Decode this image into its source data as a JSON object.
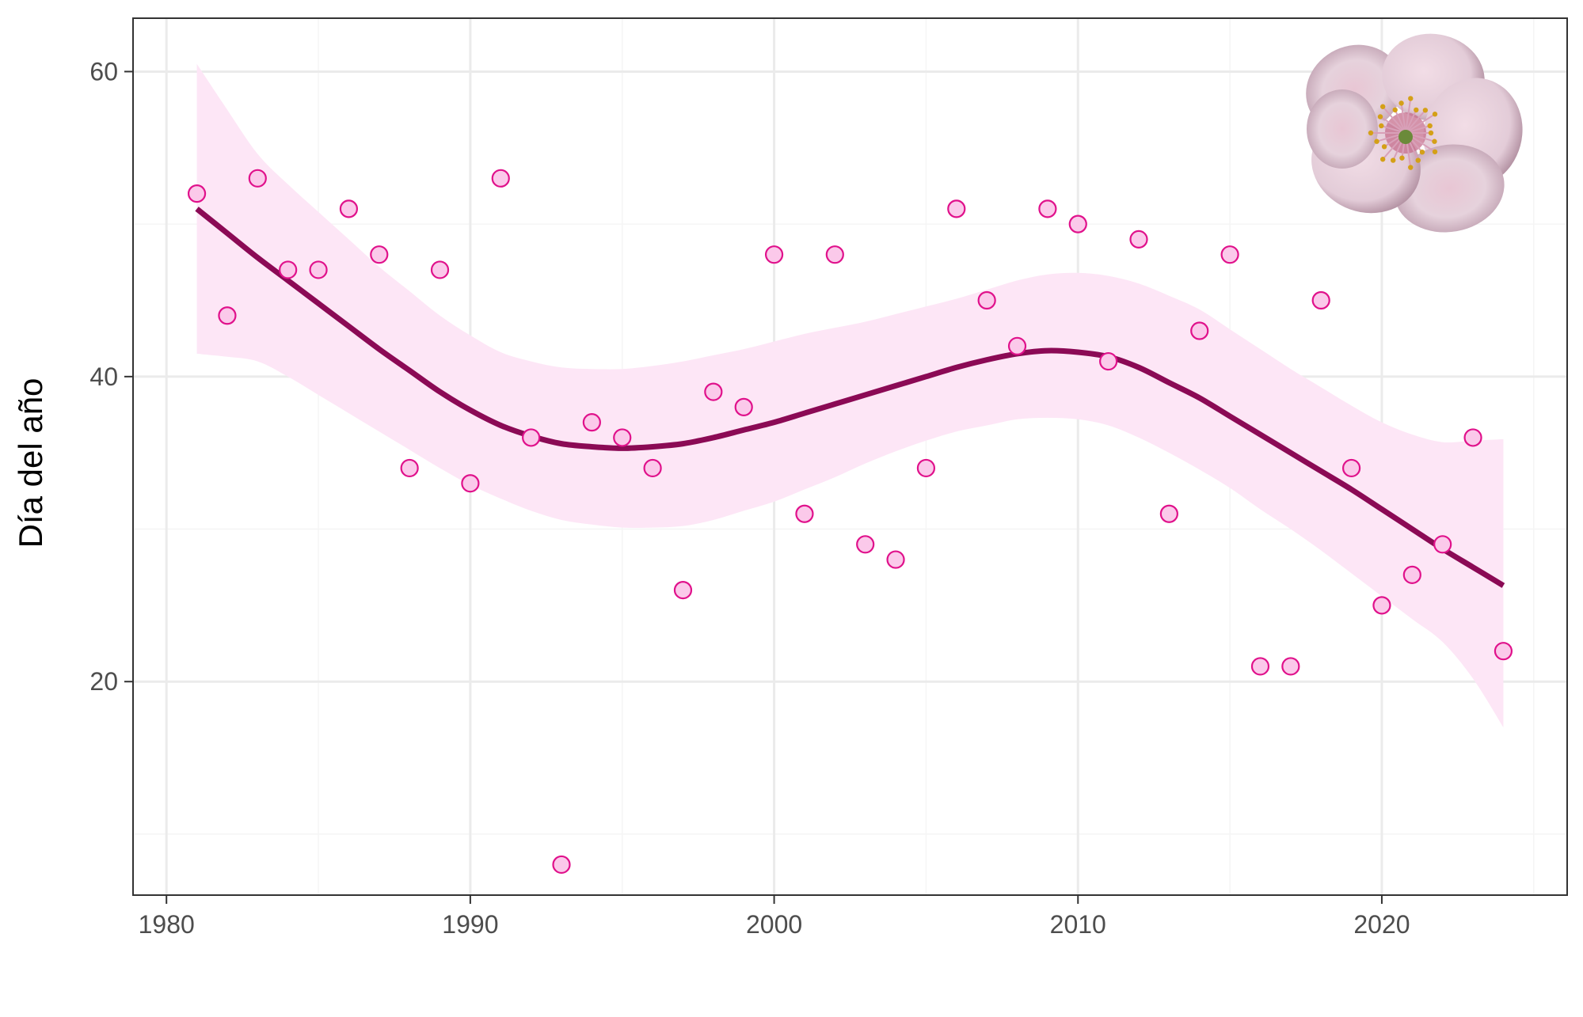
{
  "chart_data": {
    "type": "scatter",
    "xlabel": "",
    "ylabel": "Día del año",
    "xlim": [
      1978.9,
      2026.1
    ],
    "ylim": [
      6.0,
      63.5
    ],
    "x_ticks": [
      1980,
      1990,
      2000,
      2010,
      2020
    ],
    "x_minor_ticks": [
      1985,
      1995,
      2005,
      2015,
      2025
    ],
    "y_ticks": [
      20,
      40,
      60
    ],
    "y_minor_ticks": [
      10,
      30,
      50
    ],
    "grid": true,
    "points": {
      "x": [
        1981,
        1982,
        1983,
        1984,
        1985,
        1986,
        1987,
        1988,
        1989,
        1990,
        1991,
        1992,
        1993,
        1994,
        1995,
        1996,
        1997,
        1998,
        1999,
        2000,
        2001,
        2002,
        2003,
        2004,
        2005,
        2006,
        2007,
        2008,
        2009,
        2010,
        2011,
        2012,
        2013,
        2014,
        2015,
        2016,
        2017,
        2018,
        2019,
        2020,
        2021,
        2022,
        2023,
        2024
      ],
      "y": [
        52,
        44,
        53,
        47,
        47,
        51,
        48,
        34,
        47,
        33,
        53,
        36,
        8,
        37,
        36,
        34,
        26,
        39,
        38,
        48,
        31,
        48,
        29,
        28,
        34,
        51,
        45,
        42,
        51,
        50,
        41,
        49,
        31,
        43,
        48,
        21,
        21,
        45,
        34,
        25,
        27,
        29,
        36,
        22
      ]
    },
    "smooth": {
      "x": [
        1981,
        1982,
        1983,
        1984,
        1985,
        1986,
        1987,
        1988,
        1989,
        1990,
        1991,
        1992,
        1993,
        1994,
        1995,
        1996,
        1997,
        1998,
        1999,
        2000,
        2001,
        2002,
        2003,
        2004,
        2005,
        2006,
        2007,
        2008,
        2009,
        2010,
        2011,
        2012,
        2013,
        2014,
        2015,
        2016,
        2017,
        2018,
        2019,
        2020,
        2021,
        2022,
        2023,
        2024
      ],
      "y": [
        51.0,
        49.4,
        47.8,
        46.3,
        44.8,
        43.3,
        41.8,
        40.4,
        39.0,
        37.8,
        36.8,
        36.1,
        35.6,
        35.4,
        35.3,
        35.4,
        35.6,
        36.0,
        36.5,
        37.0,
        37.6,
        38.2,
        38.8,
        39.4,
        40.0,
        40.6,
        41.1,
        41.5,
        41.7,
        41.6,
        41.3,
        40.6,
        39.6,
        38.6,
        37.4,
        36.2,
        35.0,
        33.8,
        32.6,
        31.3,
        30.0,
        28.7,
        27.5,
        26.3
      ],
      "lower": [
        41.5,
        41.3,
        41.0,
        40.0,
        38.8,
        37.6,
        36.4,
        35.2,
        34.0,
        32.9,
        32.0,
        31.2,
        30.6,
        30.3,
        30.1,
        30.1,
        30.2,
        30.6,
        31.2,
        31.8,
        32.6,
        33.4,
        34.3,
        35.1,
        35.8,
        36.4,
        36.8,
        37.2,
        37.3,
        37.2,
        36.8,
        36.0,
        35.0,
        33.9,
        32.7,
        31.3,
        30.0,
        28.6,
        27.1,
        25.6,
        24.1,
        22.6,
        20.2,
        17.0
      ],
      "upper": [
        60.5,
        57.5,
        54.6,
        52.6,
        50.8,
        49.0,
        47.2,
        45.6,
        44.0,
        42.7,
        41.6,
        41.0,
        40.6,
        40.5,
        40.5,
        40.7,
        41.0,
        41.4,
        41.8,
        42.3,
        42.8,
        43.2,
        43.6,
        44.1,
        44.6,
        45.1,
        45.7,
        46.3,
        46.7,
        46.8,
        46.6,
        46.1,
        45.3,
        44.4,
        43.1,
        41.8,
        40.5,
        39.3,
        38.1,
        37.0,
        36.2,
        35.7,
        35.8,
        35.9
      ]
    },
    "colors": {
      "point_fill": "#fbc9ea",
      "point_stroke": "#e0118b",
      "line": "#8b0a55",
      "ribbon": "#fde6f6",
      "grid_major": "#ebebeb",
      "grid_minor": "#f5f5f5",
      "panel_border": "#333333"
    },
    "decoration": "almond-blossom-icon"
  }
}
